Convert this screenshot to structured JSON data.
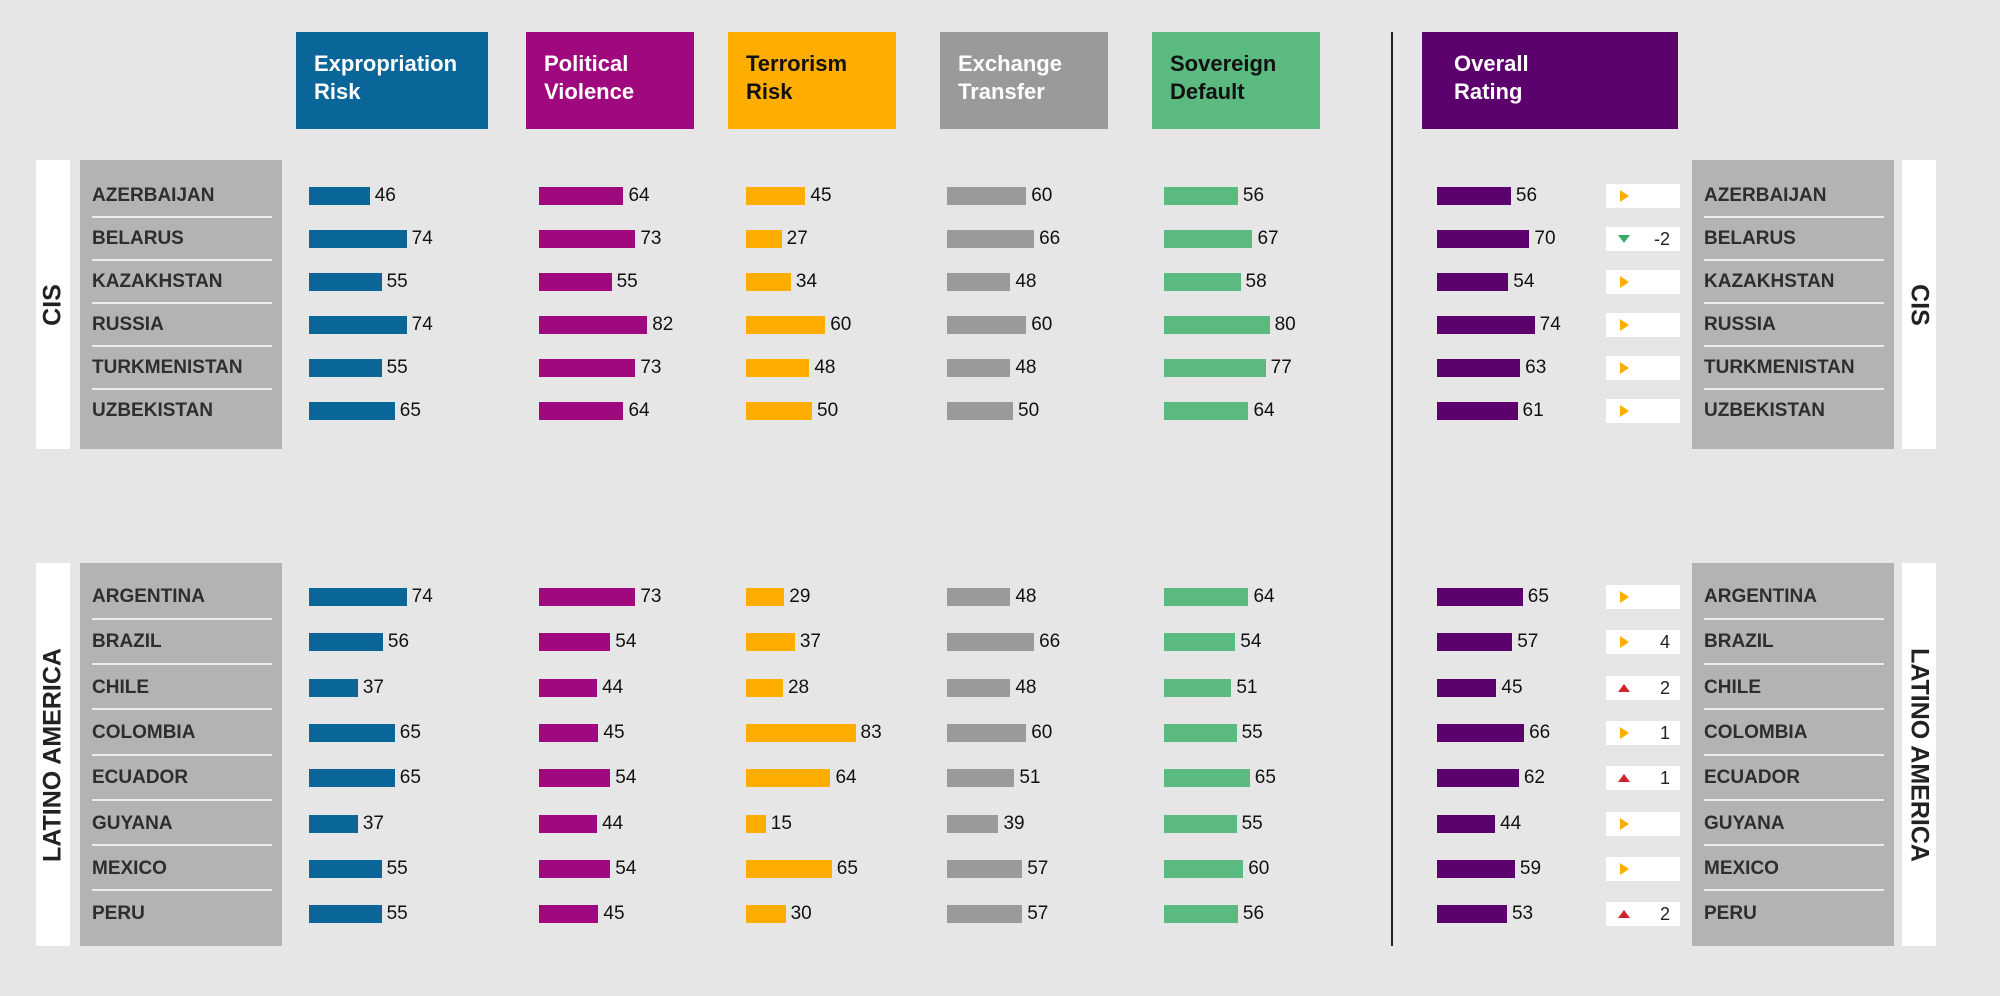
{
  "headers": [
    {
      "line1": "Expropriation",
      "line2": "Risk",
      "color": "#0a6699"
    },
    {
      "line1": "Political",
      "line2": "Violence",
      "color": "#a0097d"
    },
    {
      "line1": "Terrorism",
      "line2": "Risk",
      "color": "#ffae00"
    },
    {
      "line1": "Exchange",
      "line2": "Transfer",
      "color": "#9a9a9a"
    },
    {
      "line1": "Sovereign",
      "line2": "Default",
      "color": "#5bba7f"
    },
    {
      "line1": "Overall",
      "line2": "Rating",
      "color": "#5c006d"
    }
  ],
  "chart_data": {
    "type": "bar",
    "metrics": [
      "Expropriation Risk",
      "Political Violence",
      "Terrorism Risk",
      "Exchange Transfer",
      "Sovereign Default",
      "Overall Rating"
    ],
    "colors": {
      "Expropriation Risk": "#0a6699",
      "Political Violence": "#a0097d",
      "Terrorism Risk": "#ffae00",
      "Exchange Transfer": "#9a9a9a",
      "Sovereign Default": "#5bba7f",
      "Overall Rating": "#5c006d"
    },
    "change_colors": {
      "up": "#d0232c",
      "down": "#3aa86b",
      "neutral": "#ffae00"
    },
    "regions": [
      {
        "name": "CIS",
        "countries": [
          {
            "name": "AZERBAIJAN",
            "values": [
              46,
              64,
              45,
              60,
              56,
              56
            ],
            "change": {
              "dir": "neutral",
              "value": ""
            }
          },
          {
            "name": "BELARUS",
            "values": [
              74,
              73,
              27,
              66,
              67,
              70
            ],
            "change": {
              "dir": "down",
              "value": "-2"
            }
          },
          {
            "name": "KAZAKHSTAN",
            "values": [
              55,
              55,
              34,
              48,
              58,
              54
            ],
            "change": {
              "dir": "neutral",
              "value": ""
            }
          },
          {
            "name": "RUSSIA",
            "values": [
              74,
              82,
              60,
              60,
              80,
              74
            ],
            "change": {
              "dir": "neutral",
              "value": ""
            }
          },
          {
            "name": "TURKMENISTAN",
            "values": [
              55,
              73,
              48,
              48,
              77,
              63
            ],
            "change": {
              "dir": "neutral",
              "value": ""
            }
          },
          {
            "name": "UZBEKISTAN",
            "values": [
              65,
              64,
              50,
              50,
              64,
              61
            ],
            "change": {
              "dir": "neutral",
              "value": ""
            }
          }
        ]
      },
      {
        "name": "LATINO AMERICA",
        "countries": [
          {
            "name": "ARGENTINA",
            "values": [
              74,
              73,
              29,
              48,
              64,
              65
            ],
            "change": {
              "dir": "neutral",
              "value": ""
            }
          },
          {
            "name": "BRAZIL",
            "values": [
              56,
              54,
              37,
              66,
              54,
              57
            ],
            "change": {
              "dir": "neutral",
              "value": "4"
            }
          },
          {
            "name": "CHILE",
            "values": [
              37,
              44,
              28,
              48,
              51,
              45
            ],
            "change": {
              "dir": "up",
              "value": "2"
            }
          },
          {
            "name": "COLOMBIA",
            "values": [
              65,
              45,
              83,
              60,
              55,
              66
            ],
            "change": {
              "dir": "neutral",
              "value": "1"
            }
          },
          {
            "name": "ECUADOR",
            "values": [
              65,
              54,
              64,
              51,
              65,
              62
            ],
            "change": {
              "dir": "up",
              "value": "1"
            }
          },
          {
            "name": "GUYANA",
            "values": [
              37,
              44,
              15,
              39,
              55,
              44
            ],
            "change": {
              "dir": "neutral",
              "value": ""
            }
          },
          {
            "name": "MEXICO",
            "values": [
              55,
              54,
              65,
              57,
              60,
              59
            ],
            "change": {
              "dir": "neutral",
              "value": ""
            }
          },
          {
            "name": "PERU",
            "values": [
              55,
              45,
              30,
              57,
              56,
              53
            ],
            "change": {
              "dir": "up",
              "value": "2"
            }
          }
        ]
      }
    ]
  }
}
